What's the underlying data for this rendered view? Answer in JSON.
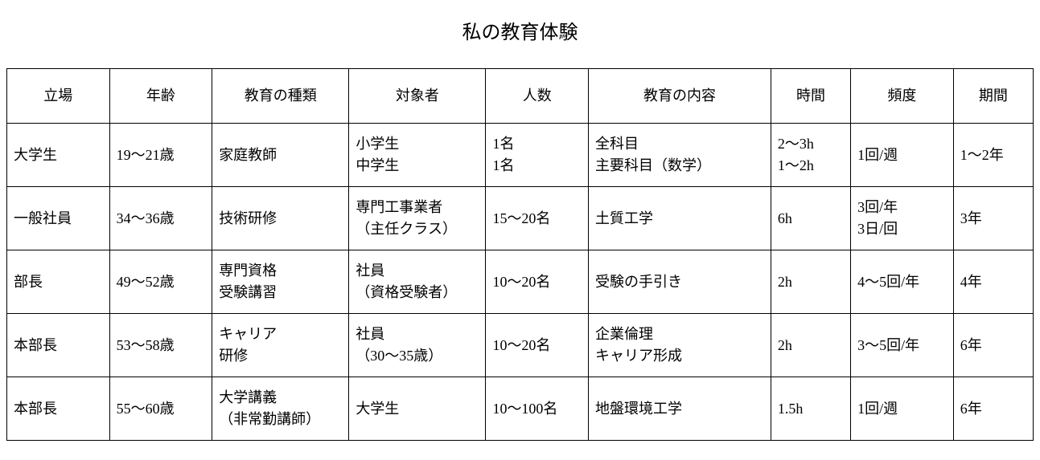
{
  "title": "私の教育体験",
  "table": {
    "type": "table",
    "background_color": "#ffffff",
    "border_color": "#000000",
    "text_color": "#000000",
    "font_family": "serif",
    "title_fontsize": 24,
    "header_fontsize": 18,
    "cell_fontsize": 18,
    "columns": [
      {
        "key": "position",
        "label": "立場",
        "width_pct": 9
      },
      {
        "key": "age",
        "label": "年齢",
        "width_pct": 9
      },
      {
        "key": "type",
        "label": "教育の種類",
        "width_pct": 12
      },
      {
        "key": "target",
        "label": "対象者",
        "width_pct": 12
      },
      {
        "key": "count",
        "label": "人数",
        "width_pct": 9
      },
      {
        "key": "content",
        "label": "教育の内容",
        "width_pct": 16
      },
      {
        "key": "hours",
        "label": "時間",
        "width_pct": 7
      },
      {
        "key": "freq",
        "label": "頻度",
        "width_pct": 9
      },
      {
        "key": "period",
        "label": "期間",
        "width_pct": 7
      }
    ],
    "rows": [
      {
        "position": "大学生",
        "age": "19～21歳",
        "type": "家庭教師",
        "target": "小学生\n中学生",
        "count": "1名\n1名",
        "content": "全科目\n主要科目（数学）",
        "hours": "2～3h\n1～2h",
        "freq": "1回/週",
        "period": "1～2年"
      },
      {
        "position": "一般社員",
        "age": "34～36歳",
        "type": "技術研修",
        "target": "専門工事業者\n（主任クラス）",
        "count": "15～20名",
        "content": "土質工学",
        "hours": "6h",
        "freq": "3回/年\n3日/回",
        "period": "3年"
      },
      {
        "position": "部長",
        "age": "49～52歳",
        "type": "専門資格\n受験講習",
        "target": "社員\n（資格受験者）",
        "count": "10～20名",
        "content": "受験の手引き",
        "hours": "2h",
        "freq": "4～5回/年",
        "period": "4年"
      },
      {
        "position": "本部長",
        "age": "53～58歳",
        "type": "キャリア\n研修",
        "target": "社員\n（30～35歳）",
        "count": "10～20名",
        "content": "企業倫理\nキャリア形成",
        "hours": "2h",
        "freq": "3～5回/年",
        "period": "6年"
      },
      {
        "position": "本部長",
        "age": "55～60歳",
        "type": "大学講義\n（非常勤講師）",
        "target": "大学生",
        "count": "10～100名",
        "content": "地盤環境工学",
        "hours": "1.5h",
        "freq": "1回/週",
        "period": "6年"
      }
    ]
  }
}
